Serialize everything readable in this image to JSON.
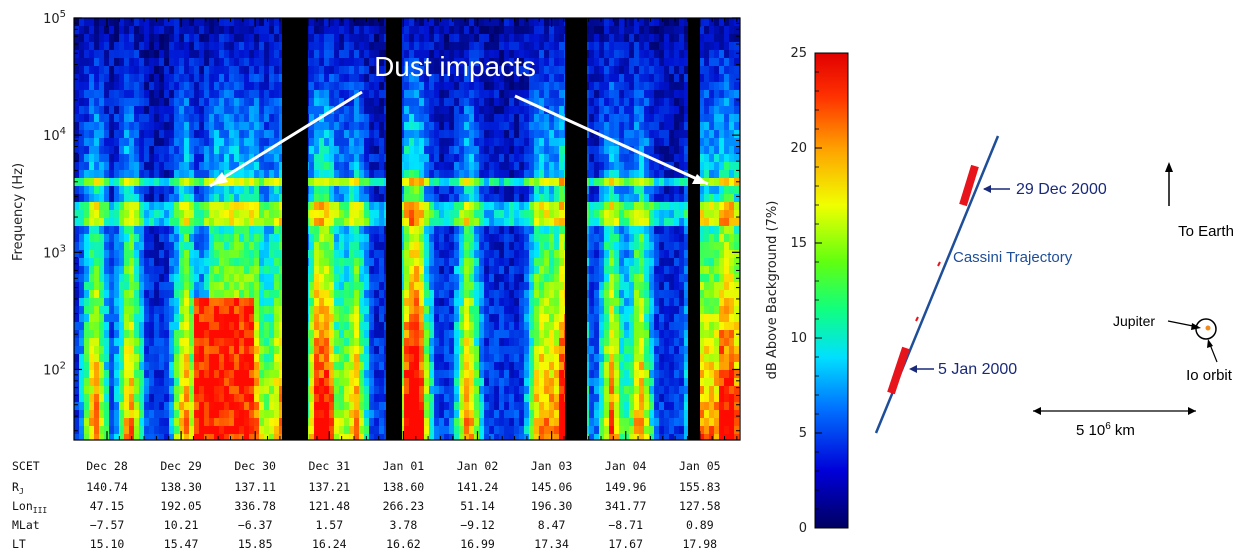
{
  "chart_data": [
    {
      "type": "heatmap",
      "title": "",
      "ylabel": "Frequency (Hz)",
      "yscale": "log",
      "ylim": [
        25,
        100000
      ],
      "y_ticks": [
        {
          "base": "10",
          "exp": "2"
        },
        {
          "base": "10",
          "exp": "3"
        },
        {
          "base": "10",
          "exp": "4"
        },
        {
          "base": "10",
          "exp": "5"
        }
      ],
      "x_ticks": [
        "Dec 28",
        "Dec 29",
        "Dec 30",
        "Dec 31",
        "Jan 01",
        "Jan 02",
        "Jan 03",
        "Jan 04",
        "Jan 05"
      ],
      "annotation": "Dust impacts",
      "ephemeris": {
        "rows": [
          {
            "label": "SCET",
            "values": []
          },
          {
            "label": "R",
            "sub": "J",
            "values": [
              "140.74",
              "138.30",
              "137.11",
              "137.21",
              "138.60",
              "141.24",
              "145.06",
              "149.96",
              "155.83"
            ]
          },
          {
            "label": "Lon",
            "sub": "III",
            "values": [
              "47.15",
              "192.05",
              "336.78",
              "121.48",
              "266.23",
              "51.14",
              "196.30",
              "341.77",
              "127.58"
            ]
          },
          {
            "label": "MLat",
            "sub": "",
            "values": [
              "−7.57",
              "10.21",
              "−6.37",
              "1.57",
              "3.78",
              "−9.12",
              "8.47",
              "−8.71",
              "0.89"
            ]
          },
          {
            "label": "LT",
            "sub": "",
            "values": [
              "15.10",
              "15.47",
              "15.85",
              "16.24",
              "16.62",
              "16.99",
              "17.34",
              "17.67",
              "17.98"
            ]
          }
        ]
      }
    },
    {
      "type": "colorbar",
      "label": "dB Above Background (7%)",
      "range": [
        0,
        25
      ],
      "ticks": [
        "0",
        "5",
        "10",
        "15",
        "20",
        "25"
      ]
    }
  ],
  "trajectory": {
    "path_label": "Cassini Trajectory",
    "date_upper": "29 Dec 2000",
    "date_lower": "5 Jan 2000",
    "earth_label": "To Earth",
    "jupiter_label": "Jupiter",
    "io_label": "Io orbit",
    "scale": {
      "base": "5 10",
      "exp": "6",
      "unit": " km"
    }
  },
  "colors": {
    "trajectory": "#1f4e99",
    "marker": "#e8141b",
    "label_blue": "#1a2a7a",
    "annotation": "#ffffff"
  }
}
